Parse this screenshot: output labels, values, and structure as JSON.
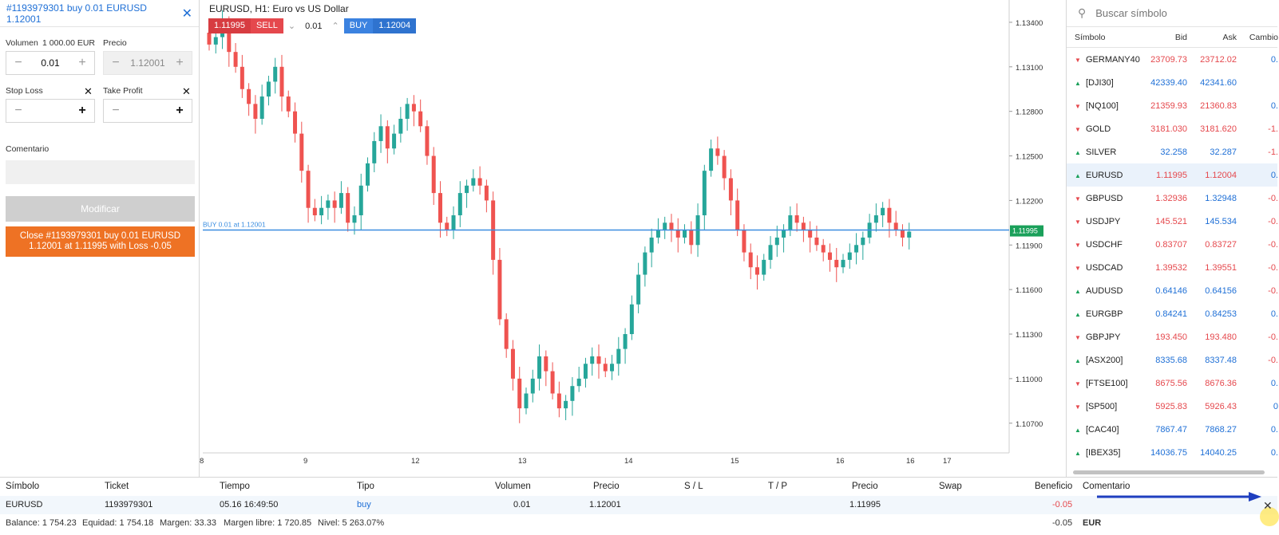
{
  "order": {
    "title": "#1193979301 buy 0.01 EURUSD 1.12001",
    "volume_label": "Volumen",
    "volume_value_label": "1 000.00 EUR",
    "volume": "0.01",
    "price_label": "Precio",
    "price": "1.12001",
    "stop_loss_label": "Stop Loss",
    "take_profit_label": "Take Profit",
    "comment_label": "Comentario",
    "modify_label": "Modificar",
    "close_line1": "Close #1193979301 buy 0.01 EURUSD",
    "close_line2": "1.12001 at 1.11995 with Loss -0.05"
  },
  "chart": {
    "title": "EURUSD, H1: Euro vs US Dollar",
    "sell_price": "1.11995",
    "sell_label": "SELL",
    "lot": "0.01",
    "buy_label": "BUY",
    "buy_price": "1.12004",
    "position_line_label": "BUY 0.01 at 1.12001",
    "current_price_tag": "1.11995"
  },
  "chart_data": {
    "type": "candlestick",
    "title": "EURUSD, H1: Euro vs US Dollar",
    "x_ticks": [
      "8",
      "9",
      "12",
      "13",
      "14",
      "15",
      "16",
      "16",
      "17"
    ],
    "y_ticks": [
      "1.13400",
      "1.13100",
      "1.12800",
      "1.12500",
      "1.12200",
      "1.11900",
      "1.11600",
      "1.11300",
      "1.11000",
      "1.10700"
    ],
    "ylim": [
      1.105,
      1.1355
    ],
    "position_line": 1.12001,
    "current_price": 1.11995,
    "closes": [
      1.1325,
      1.133,
      1.134,
      1.132,
      1.131,
      1.1295,
      1.1285,
      1.1275,
      1.129,
      1.13,
      1.131,
      1.129,
      1.128,
      1.1265,
      1.124,
      1.1215,
      1.121,
      1.1215,
      1.122,
      1.1215,
      1.1225,
      1.1205,
      1.121,
      1.123,
      1.1245,
      1.126,
      1.127,
      1.1255,
      1.1265,
      1.1275,
      1.1285,
      1.128,
      1.127,
      1.125,
      1.1225,
      1.1205,
      1.12,
      1.121,
      1.1225,
      1.123,
      1.1235,
      1.123,
      1.122,
      1.118,
      1.114,
      1.112,
      1.11,
      1.108,
      1.109,
      1.11,
      1.1115,
      1.1105,
      1.109,
      1.108,
      1.1085,
      1.1095,
      1.11,
      1.111,
      1.1115,
      1.111,
      1.1105,
      1.111,
      1.112,
      1.113,
      1.115,
      1.117,
      1.1185,
      1.1195,
      1.12,
      1.1205,
      1.12,
      1.1195,
      1.12,
      1.119,
      1.121,
      1.124,
      1.1255,
      1.125,
      1.1235,
      1.122,
      1.12,
      1.1185,
      1.1175,
      1.117,
      1.118,
      1.119,
      1.1195,
      1.12,
      1.121,
      1.1205,
      1.12,
      1.1195,
      1.119,
      1.1185,
      1.118,
      1.1175,
      1.118,
      1.1185,
      1.119,
      1.1195,
      1.1205,
      1.121,
      1.1215,
      1.1205,
      1.12,
      1.1195,
      1.1199
    ]
  },
  "market": {
    "search_placeholder": "Buscar símbolo",
    "headers": {
      "symbol": "Símbolo",
      "bid": "Bid",
      "ask": "Ask",
      "change": "Cambio"
    },
    "rows": [
      {
        "symbol": "GERMANY40",
        "bid": "23709.73",
        "ask": "23712.02",
        "change": "0.",
        "dir": "down",
        "color": "red"
      },
      {
        "symbol": "[DJI30]",
        "bid": "42339.40",
        "ask": "42341.60",
        "change": "",
        "dir": "up",
        "color": "blue"
      },
      {
        "symbol": "[NQ100]",
        "bid": "21359.93",
        "ask": "21360.83",
        "change": "0.",
        "dir": "down",
        "color": "red"
      },
      {
        "symbol": "GOLD",
        "bid": "3181.030",
        "ask": "3181.620",
        "change": "-1.",
        "dir": "down",
        "color": "red"
      },
      {
        "symbol": "SILVER",
        "bid": "32.258",
        "ask": "32.287",
        "change": "-1.",
        "dir": "up",
        "color": "blue"
      },
      {
        "symbol": "EURUSD",
        "bid": "1.11995",
        "ask": "1.12004",
        "change": "0.",
        "dir": "up",
        "color": "mixed"
      },
      {
        "symbol": "GBPUSD",
        "bid": "1.32936",
        "ask": "1.32948",
        "change": "-0.",
        "dir": "down",
        "color": "mixed"
      },
      {
        "symbol": "USDJPY",
        "bid": "145.521",
        "ask": "145.534",
        "change": "-0.",
        "dir": "down",
        "color": "mixed"
      },
      {
        "symbol": "USDCHF",
        "bid": "0.83707",
        "ask": "0.83727",
        "change": "-0.",
        "dir": "down",
        "color": "red"
      },
      {
        "symbol": "USDCAD",
        "bid": "1.39532",
        "ask": "1.39551",
        "change": "-0.",
        "dir": "down",
        "color": "red"
      },
      {
        "symbol": "AUDUSD",
        "bid": "0.64146",
        "ask": "0.64156",
        "change": "-0.",
        "dir": "up",
        "color": "blue"
      },
      {
        "symbol": "EURGBP",
        "bid": "0.84241",
        "ask": "0.84253",
        "change": "0.",
        "dir": "up",
        "color": "blue"
      },
      {
        "symbol": "GBPJPY",
        "bid": "193.450",
        "ask": "193.480",
        "change": "-0.",
        "dir": "down",
        "color": "red"
      },
      {
        "symbol": "[ASX200]",
        "bid": "8335.68",
        "ask": "8337.48",
        "change": "-0.",
        "dir": "up",
        "color": "blue"
      },
      {
        "symbol": "[FTSE100]",
        "bid": "8675.56",
        "ask": "8676.36",
        "change": "0.",
        "dir": "down",
        "color": "red"
      },
      {
        "symbol": "[SP500]",
        "bid": "5925.83",
        "ask": "5926.43",
        "change": "0",
        "dir": "down",
        "color": "red"
      },
      {
        "symbol": "[CAC40]",
        "bid": "7867.47",
        "ask": "7868.27",
        "change": "0.",
        "dir": "up",
        "color": "blue"
      },
      {
        "symbol": "[IBEX35]",
        "bid": "14036.75",
        "ask": "14040.25",
        "change": "0.",
        "dir": "up",
        "color": "blue"
      }
    ]
  },
  "positions": {
    "headers": {
      "symbol": "Símbolo",
      "ticket": "Ticket",
      "time": "Tiempo",
      "type": "Tipo",
      "volume": "Volumen",
      "price": "Precio",
      "sl": "S / L",
      "tp": "T / P",
      "cur_price": "Precio",
      "swap": "Swap",
      "profit": "Beneficio",
      "comment": "Comentario"
    },
    "row": {
      "symbol": "EURUSD",
      "ticket": "1193979301",
      "time": "05.16 16:49:50",
      "type": "buy",
      "volume": "0.01",
      "price": "1.12001",
      "cur_price": "1.11995",
      "profit": "-0.05"
    },
    "footer": {
      "balance": "Balance: 1 754.23",
      "equity": "Equidad: 1 754.18",
      "margin": "Margen: 33.33",
      "free_margin": "Margen libre: 1 720.85",
      "level": "Nivel: 5 263.07%",
      "profit": "-0.05",
      "currency": "EUR"
    }
  },
  "colors": {
    "up": "#26a69a",
    "down": "#ef5350",
    "accent": "#1e6fd6",
    "close_btn": "#ee7224"
  }
}
